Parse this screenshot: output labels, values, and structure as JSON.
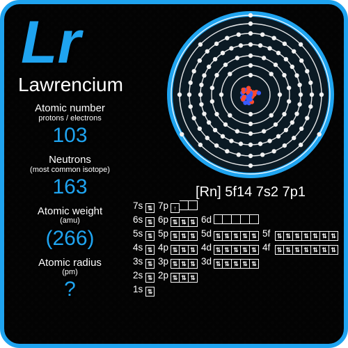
{
  "accent_color": "#1fa4f0",
  "element": {
    "symbol": "Lr",
    "name": "Lawrencium"
  },
  "properties": [
    {
      "label": "Atomic number",
      "sub": "protons / electrons",
      "value": "103"
    },
    {
      "label": "Neutrons",
      "sub": "(most common isotope)",
      "value": "163"
    },
    {
      "label": "Atomic weight",
      "sub": "(amu)",
      "value": "(266)"
    },
    {
      "label": "Atomic radius",
      "sub": "(pm)",
      "value": "?"
    }
  ],
  "electron_config": "[Rn] 5f14 7s2 7p1",
  "atom_diagram": {
    "shells": [
      2,
      8,
      18,
      32,
      32,
      8,
      3
    ],
    "shell_radii": [
      28,
      42,
      56,
      72,
      88,
      102,
      114
    ],
    "ring_color": "#ffffff",
    "electron_color": "#f2f2f2",
    "bg_color": "#1fa4f0",
    "nucleus_colors": [
      "#ff4a2e",
      "#3a5bff"
    ]
  },
  "orbitals": {
    "rows": [
      [
        {
          "l": "7s",
          "b": [
            "⇅"
          ]
        },
        {
          "l": "7p",
          "b": [
            "↑",
            "",
            ""
          ]
        }
      ],
      [
        {
          "l": "6s",
          "b": [
            "⇅"
          ]
        },
        {
          "l": "6p",
          "b": [
            "⇅",
            "⇅",
            "⇅"
          ]
        },
        {
          "l": "6d",
          "b": [
            "",
            "",
            "",
            "",
            ""
          ]
        }
      ],
      [
        {
          "l": "5s",
          "b": [
            "⇅"
          ]
        },
        {
          "l": "5p",
          "b": [
            "⇅",
            "⇅",
            "⇅"
          ]
        },
        {
          "l": "5d",
          "b": [
            "⇅",
            "⇅",
            "⇅",
            "⇅",
            "⇅"
          ]
        },
        {
          "l": "5f",
          "b": [
            "⇅",
            "⇅",
            "⇅",
            "⇅",
            "⇅",
            "⇅",
            "⇅"
          ]
        }
      ],
      [
        {
          "l": "4s",
          "b": [
            "⇅"
          ]
        },
        {
          "l": "4p",
          "b": [
            "⇅",
            "⇅",
            "⇅"
          ]
        },
        {
          "l": "4d",
          "b": [
            "⇅",
            "⇅",
            "⇅",
            "⇅",
            "⇅"
          ]
        },
        {
          "l": "4f",
          "b": [
            "⇅",
            "⇅",
            "⇅",
            "⇅",
            "⇅",
            "⇅",
            "⇅"
          ]
        }
      ],
      [
        {
          "l": "3s",
          "b": [
            "⇅"
          ]
        },
        {
          "l": "3p",
          "b": [
            "⇅",
            "⇅",
            "⇅"
          ]
        },
        {
          "l": "3d",
          "b": [
            "⇅",
            "⇅",
            "⇅",
            "⇅",
            "⇅"
          ]
        }
      ],
      [
        {
          "l": "2s",
          "b": [
            "⇅"
          ]
        },
        {
          "l": "2p",
          "b": [
            "⇅",
            "⇅",
            "⇅"
          ]
        }
      ],
      [
        {
          "l": "1s",
          "b": [
            "⇅"
          ]
        }
      ]
    ]
  }
}
